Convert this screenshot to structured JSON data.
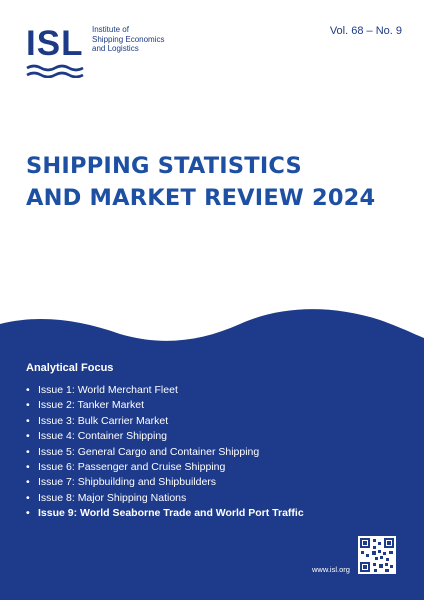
{
  "org": {
    "logo_text": "ISL",
    "name_lines": [
      "Institute of",
      "Shipping Economics",
      "and Logistics"
    ]
  },
  "volume": "Vol. 68 – No. 9",
  "title_lines": [
    "SHIPPING STATISTICS",
    "AND MARKET REVIEW 2024"
  ],
  "focus": {
    "heading": "Analytical Focus",
    "items": [
      {
        "label": "Issue 1: World Merchant Fleet",
        "bold": false
      },
      {
        "label": "Issue 2: Tanker Market",
        "bold": false
      },
      {
        "label": "Issue 3: Bulk Carrier Market",
        "bold": false
      },
      {
        "label": "Issue 4: Container Shipping",
        "bold": false
      },
      {
        "label": "Issue 5: General Cargo and Container Shipping",
        "bold": false
      },
      {
        "label": "Issue 6: Passenger and Cruise Shipping",
        "bold": false
      },
      {
        "label": "Issue 7: Shipbuilding and Shipbuilders",
        "bold": false
      },
      {
        "label": "Issue 8: Major Shipping Nations",
        "bold": false
      },
      {
        "label": "Issue 9: World Seaborne Trade and World Port Traffic",
        "bold": true
      }
    ]
  },
  "website": "www.isl.org",
  "colors": {
    "primary": "#1d3a86",
    "title": "#1d4fa3",
    "panel": "#1e3a8a"
  }
}
